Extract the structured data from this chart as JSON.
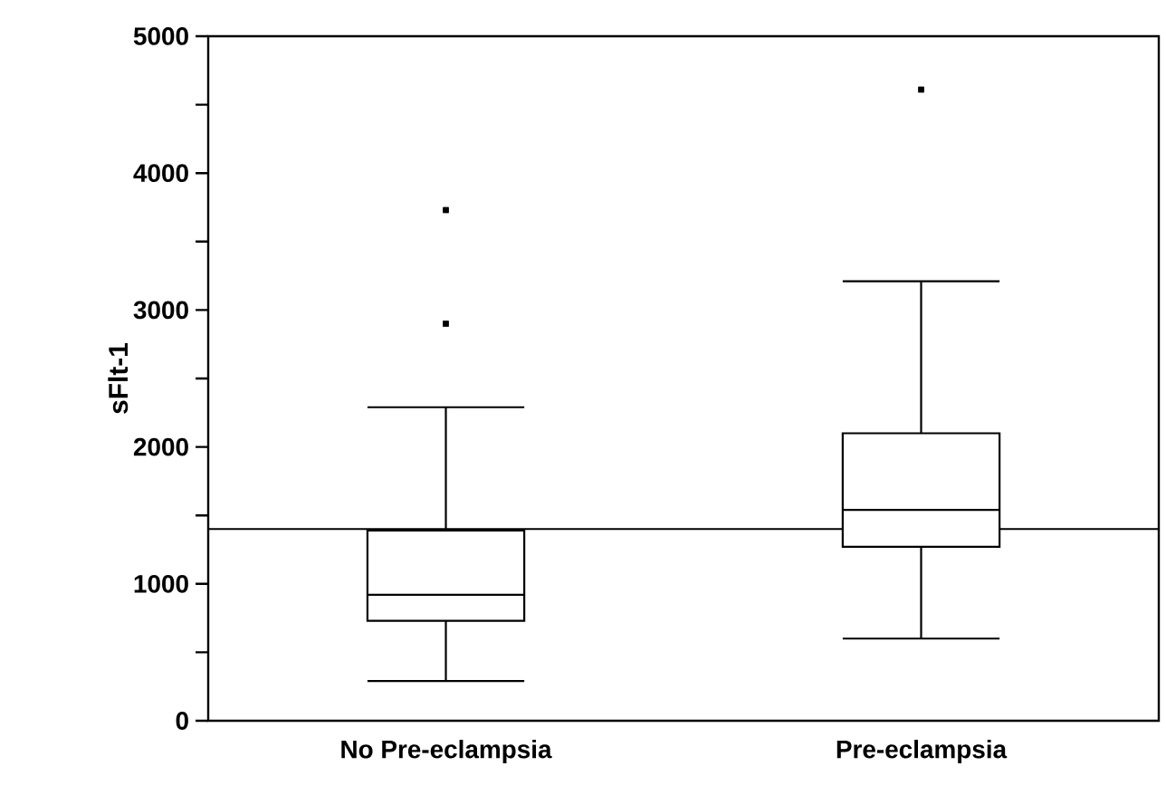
{
  "chart_data": {
    "type": "box",
    "ylabel": "sFlt-1",
    "categories": [
      "No Pre-eclampsia",
      "Pre-eclampsia"
    ],
    "boxes": [
      {
        "low": 290,
        "q1": 730,
        "median": 920,
        "q3": 1390,
        "high": 2290,
        "outliers": [
          2900,
          3730
        ]
      },
      {
        "low": 600,
        "q1": 1270,
        "median": 1540,
        "q3": 2100,
        "high": 3210,
        "outliers": [
          4610
        ]
      }
    ],
    "color": "#000000",
    "ylim": [
      0,
      5000
    ],
    "yticks": [
      0,
      {
        "value": 500,
        "label": null
      },
      1000,
      {
        "value": 1500,
        "label": null
      },
      2000,
      {
        "value": 2500,
        "label": null
      },
      3000,
      {
        "value": 3500,
        "label": null
      },
      4000,
      {
        "value": 4500,
        "label": null
      },
      5000
    ],
    "ref_lines": [
      {
        "axis": "y",
        "value": 1400
      }
    ],
    "marker": "square",
    "grid": false
  }
}
